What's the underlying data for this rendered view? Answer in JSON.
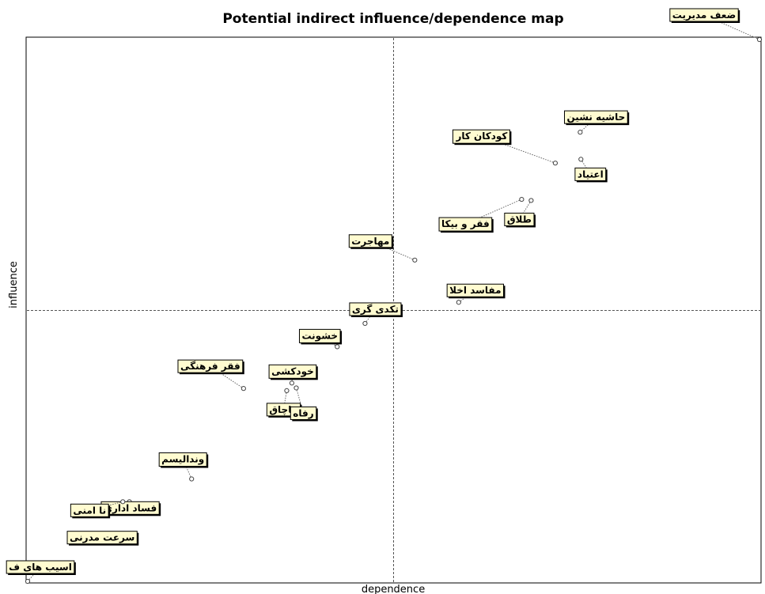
{
  "chart_data": {
    "type": "scatter",
    "title": "Potential indirect influence/dependence map",
    "xlabel": "dependence",
    "ylabel": "influence",
    "xlim": [
      0,
      100
    ],
    "ylim": [
      0,
      100
    ],
    "grid": false,
    "quadrant_lines": true,
    "points": [
      {
        "label": "ضعف مديريت",
        "x": 100.0,
        "y": 100.0
      },
      {
        "label": "حاشيه نشين",
        "x": 75.5,
        "y": 82.9
      },
      {
        "label": "كودكان كار",
        "x": 72.1,
        "y": 77.2
      },
      {
        "label": "اعتياد",
        "x": 75.6,
        "y": 77.9
      },
      {
        "label": "طلاق",
        "x": 68.8,
        "y": 70.3
      },
      {
        "label": "فقر و بيكا",
        "x": 67.5,
        "y": 70.5
      },
      {
        "label": "مهاجرت",
        "x": 52.9,
        "y": 59.3
      },
      {
        "label": "مفاسد اخلا",
        "x": 58.9,
        "y": 51.5
      },
      {
        "label": "تكدی گری",
        "x": 46.1,
        "y": 47.6
      },
      {
        "label": "خشونت",
        "x": 42.3,
        "y": 43.3
      },
      {
        "label": "خودكشی",
        "x": 36.1,
        "y": 36.6
      },
      {
        "label": "فقر فرهنگی",
        "x": 29.5,
        "y": 35.6
      },
      {
        "label": "قاچاق",
        "x": 35.4,
        "y": 35.2
      },
      {
        "label": "رفاه",
        "x": 36.7,
        "y": 35.7
      },
      {
        "label": "وندالیسم",
        "x": 22.4,
        "y": 18.9
      },
      {
        "label": "فساد اداري",
        "x": 13.9,
        "y": 14.7
      },
      {
        "label": "نا امنی",
        "x": 13.0,
        "y": 14.7
      },
      {
        "label": "سرعت مدرنی",
        "x": 7.8,
        "y": 7.2
      },
      {
        "label": "اسیب های ف",
        "x": 0.0,
        "y": 0.0
      }
    ]
  }
}
